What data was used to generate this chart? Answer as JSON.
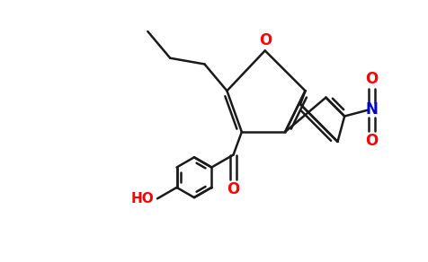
{
  "bg_color": "#ffffff",
  "bond_color": "#1a1a1a",
  "oxygen_color": "#ff0000",
  "nitrogen_color": "#0000cd",
  "lw": 1.8,
  "figsize": [
    4.76,
    2.92
  ],
  "dpi": 100,
  "xlim": [
    0,
    9.52
  ],
  "ylim": [
    0,
    5.84
  ]
}
